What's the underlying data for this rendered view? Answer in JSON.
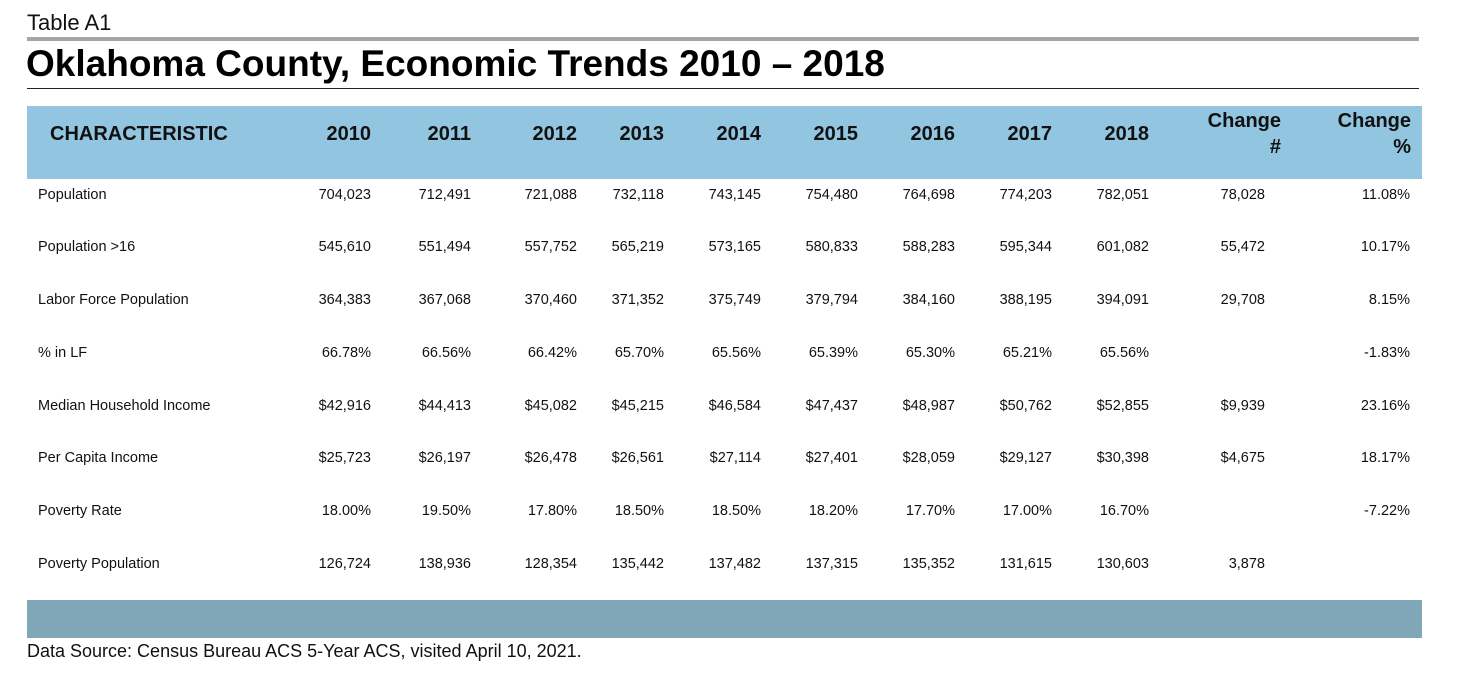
{
  "table_label": "Table A1",
  "title": "Oklahoma County, Economic Trends 2010 – 2018",
  "headers": {
    "characteristic": "CHARACTERISTIC",
    "years": [
      "2010",
      "2011",
      "2012",
      "2013",
      "2014",
      "2015",
      "2016",
      "2017",
      "2018"
    ],
    "change_num_line1": "Change",
    "change_num_line2": "#",
    "change_pct_line1": "Change",
    "change_pct_line2": "%"
  },
  "rows": [
    {
      "label": "Population",
      "values": [
        "704,023",
        "712,491",
        "721,088",
        "732,118",
        "743,145",
        "754,480",
        "764,698",
        "774,203",
        "782,051"
      ],
      "change_num": "78,028",
      "change_pct": "11.08%"
    },
    {
      "label": "Population >16",
      "values": [
        "545,610",
        "551,494",
        "557,752",
        "565,219",
        "573,165",
        "580,833",
        "588,283",
        "595,344",
        "601,082"
      ],
      "change_num": "55,472",
      "change_pct": "10.17%"
    },
    {
      "label": "Labor Force Population",
      "values": [
        "364,383",
        "367,068",
        "370,460",
        "371,352",
        "375,749",
        "379,794",
        "384,160",
        "388,195",
        "394,091"
      ],
      "change_num": "29,708",
      "change_pct": "8.15%"
    },
    {
      "label": "% in LF",
      "values": [
        "66.78%",
        "66.56%",
        "66.42%",
        "65.70%",
        "65.56%",
        "65.39%",
        "65.30%",
        "65.21%",
        "65.56%"
      ],
      "change_num": "",
      "change_pct": "-1.83%"
    },
    {
      "label": "Median Household Income",
      "values": [
        "$42,916",
        "$44,413",
        "$45,082",
        "$45,215",
        "$46,584",
        "$47,437",
        "$48,987",
        "$50,762",
        "$52,855"
      ],
      "change_num": "$9,939",
      "change_pct": "23.16%"
    },
    {
      "label": "Per Capita Income",
      "values": [
        "$25,723",
        "$26,197",
        "$26,478",
        "$26,561",
        "$27,114",
        "$27,401",
        "$28,059",
        "$29,127",
        "$30,398"
      ],
      "change_num": "$4,675",
      "change_pct": "18.17%"
    },
    {
      "label": "Poverty Rate",
      "values": [
        "18.00%",
        "19.50%",
        "17.80%",
        "18.50%",
        "18.50%",
        "18.20%",
        "17.70%",
        "17.00%",
        "16.70%"
      ],
      "change_num": "",
      "change_pct": "-7.22%"
    },
    {
      "label": "Poverty Population",
      "values": [
        "126,724",
        "138,936",
        "128,354",
        "135,442",
        "137,482",
        "137,315",
        "135,352",
        "131,615",
        "130,603"
      ],
      "change_num": "3,878",
      "change_pct": ""
    }
  ],
  "source": "Data Source: Census Bureau ACS 5-Year ACS, visited April 10, 2021.",
  "colors": {
    "header_band": "#92c5e0",
    "footer_band": "#7fa7b7",
    "top_rule": "#a6a6a6"
  }
}
